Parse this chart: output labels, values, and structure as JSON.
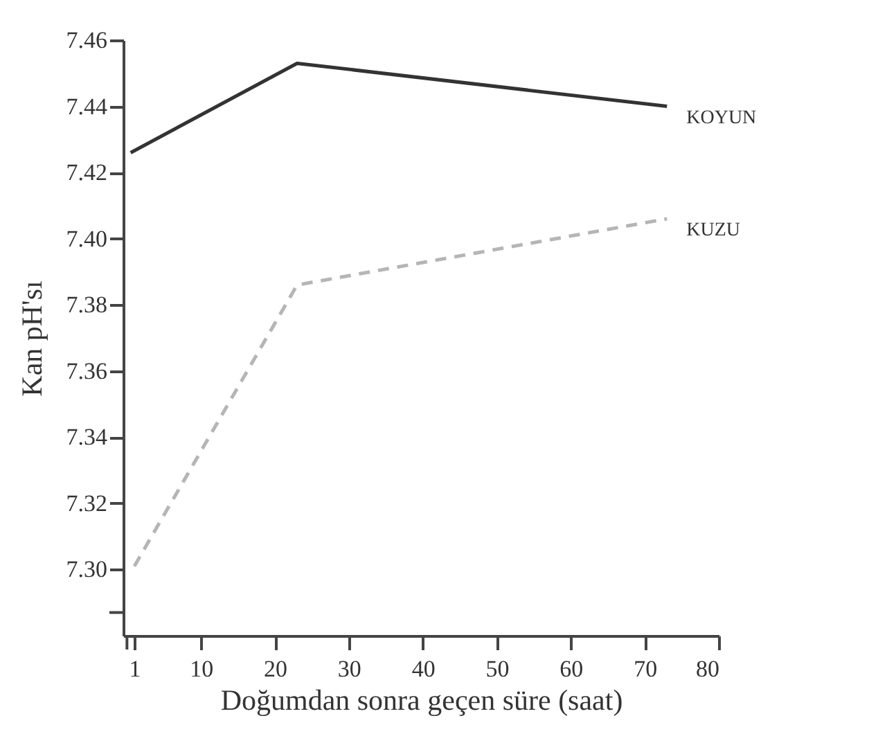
{
  "chart_data": {
    "type": "line",
    "xlabel": "Doğumdan sonra geçen süre (saat)",
    "ylabel": "Kan pH'sı",
    "xlim": [
      -0.5,
      80
    ],
    "xticks": [
      {
        "value": 0,
        "label": null
      },
      1,
      10,
      20,
      30,
      40,
      50,
      60,
      70,
      80
    ],
    "ylim": [
      7.28,
      7.46
    ],
    "yticks": [
      {
        "value": 7.287,
        "label": null
      },
      {
        "value": 7.3,
        "label": "7.30"
      },
      7.32,
      7.34,
      7.36,
      7.38,
      {
        "value": 7.4,
        "label": "7.40"
      },
      7.42,
      7.44,
      7.46
    ],
    "grid": false,
    "legend": false,
    "marker": "none",
    "series": [
      {
        "name": "KOYUN",
        "color": "#333333",
        "line_style": "solid",
        "x": [
          0.5,
          23,
          73
        ],
        "values": [
          7.426,
          7.453,
          7.44
        ]
      },
      {
        "name": "KUZU",
        "color": "#b5b5b5",
        "line_style": "dashed",
        "x": [
          1,
          23,
          73
        ],
        "values": [
          7.301,
          7.386,
          7.406
        ]
      }
    ]
  }
}
